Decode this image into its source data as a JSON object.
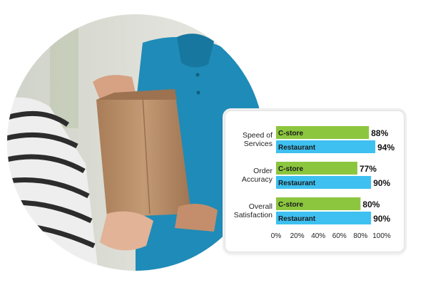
{
  "chart_data": {
    "type": "bar",
    "orientation": "horizontal",
    "categories": [
      "Speed of Services",
      "Order Accuracy",
      "Overall Satisfaction"
    ],
    "category_lines": [
      [
        "Speed of",
        "Services"
      ],
      [
        "Order",
        "Accuracy"
      ],
      [
        "Overall",
        "Satisfaction"
      ]
    ],
    "series": [
      {
        "name": "C-store",
        "values": [
          88,
          77,
          80
        ],
        "color": "#8cc63f"
      },
      {
        "name": "Restaurant",
        "values": [
          94,
          90,
          90
        ],
        "color": "#3ec0f0"
      }
    ],
    "value_labels": [
      [
        "88%",
        "77%",
        "80%"
      ],
      [
        "94%",
        "90%",
        "90%"
      ]
    ],
    "xlim": [
      0,
      100
    ],
    "x_ticks": [
      0,
      20,
      40,
      60,
      80,
      100
    ],
    "x_tick_labels": [
      "0%",
      "20%",
      "40%",
      "60%",
      "80%",
      "100%"
    ],
    "grid": false,
    "legend": "none"
  },
  "photo": {
    "description_icon": "delivery-bag-handoff-photo",
    "colors": {
      "shirt": "#1f8bb8",
      "bag": "#b98e68",
      "background": "#dcdcd6"
    }
  }
}
